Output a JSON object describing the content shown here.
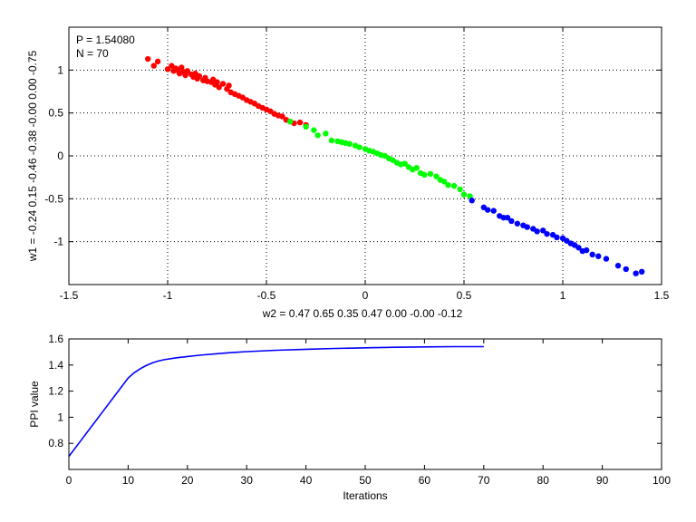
{
  "chart_data": [
    {
      "type": "scatter",
      "title": "",
      "xlabel": "w2 = 0.47  0.65  0.35  0.47  0.00  -0.00  -0.12",
      "ylabel": "w1 = -0.24  0.15  -0.46  -0.38  -0.00  0.00  -0.75",
      "xlim": [
        -1.5,
        1.5
      ],
      "ylim": [
        -1.5,
        1.5
      ],
      "xticks": [
        -1.5,
        -1,
        -0.5,
        0,
        0.5,
        1,
        1.5
      ],
      "yticks": [
        -1,
        -0.5,
        0,
        0.5,
        1
      ],
      "xtick_labels": [
        "-1.5",
        "-1",
        "-0.5",
        "0",
        "0.5",
        "1",
        "1.5"
      ],
      "ytick_labels": [
        "-1",
        "-0.5",
        "0",
        "0.5",
        "1"
      ],
      "grid": true,
      "annotations": [
        "P = 1.54080",
        "N = 70"
      ],
      "series": [
        {
          "color": "#ff0000",
          "x": [
            -1.1,
            -1.07,
            -1.05,
            -1.0,
            -0.98,
            -0.97,
            -0.96,
            -0.95,
            -0.94,
            -0.93,
            -0.92,
            -0.91,
            -0.9,
            -0.88,
            -0.87,
            -0.86,
            -0.85,
            -0.84,
            -0.82,
            -0.81,
            -0.8,
            -0.78,
            -0.77,
            -0.76,
            -0.75,
            -0.74,
            -0.72,
            -0.7,
            -0.69,
            -0.68,
            -0.66,
            -0.64,
            -0.62,
            -0.6,
            -0.58,
            -0.56,
            -0.54,
            -0.52,
            -0.5,
            -0.48,
            -0.46,
            -0.44,
            -0.42,
            -0.4,
            -0.38,
            -0.36,
            -0.33,
            -0.3
          ],
          "y": [
            1.13,
            1.05,
            1.1,
            1.01,
            1.05,
            0.99,
            1.02,
            1.0,
            0.96,
            1.03,
            0.98,
            0.94,
            0.99,
            0.95,
            0.92,
            0.96,
            0.9,
            0.93,
            0.88,
            0.91,
            0.87,
            0.86,
            0.89,
            0.83,
            0.86,
            0.8,
            0.84,
            0.78,
            0.82,
            0.74,
            0.72,
            0.7,
            0.68,
            0.65,
            0.63,
            0.61,
            0.58,
            0.56,
            0.54,
            0.52,
            0.49,
            0.47,
            0.46,
            0.42,
            0.4,
            0.38,
            0.39,
            0.36
          ]
        },
        {
          "color": "#00ff00",
          "x": [
            -0.38,
            -0.3,
            -0.26,
            -0.24,
            -0.2,
            -0.17,
            -0.14,
            -0.12,
            -0.1,
            -0.08,
            -0.05,
            -0.03,
            0.0,
            0.02,
            0.04,
            0.06,
            0.08,
            0.1,
            0.12,
            0.14,
            0.16,
            0.18,
            0.2,
            0.22,
            0.24,
            0.26,
            0.28,
            0.3,
            0.33,
            0.36,
            0.38,
            0.4,
            0.42,
            0.45,
            0.48,
            0.5,
            0.53
          ],
          "y": [
            0.4,
            0.34,
            0.3,
            0.24,
            0.26,
            0.18,
            0.17,
            0.16,
            0.15,
            0.14,
            0.12,
            0.1,
            0.08,
            0.06,
            0.05,
            0.03,
            0.01,
            0.0,
            -0.03,
            -0.05,
            -0.08,
            -0.1,
            -0.09,
            -0.13,
            -0.16,
            -0.14,
            -0.2,
            -0.22,
            -0.21,
            -0.24,
            -0.28,
            -0.3,
            -0.34,
            -0.35,
            -0.39,
            -0.45,
            -0.47
          ]
        },
        {
          "color": "#0000ff",
          "x": [
            0.54,
            0.6,
            0.62,
            0.65,
            0.68,
            0.7,
            0.72,
            0.74,
            0.77,
            0.8,
            0.82,
            0.85,
            0.87,
            0.9,
            0.92,
            0.95,
            0.97,
            1.0,
            1.02,
            1.04,
            1.06,
            1.08,
            1.1,
            1.12,
            1.15,
            1.18,
            1.22,
            1.28,
            1.32,
            1.37,
            1.4
          ],
          "y": [
            -0.52,
            -0.6,
            -0.63,
            -0.64,
            -0.7,
            -0.72,
            -0.72,
            -0.76,
            -0.79,
            -0.81,
            -0.83,
            -0.85,
            -0.88,
            -0.87,
            -0.91,
            -0.92,
            -0.95,
            -0.96,
            -0.99,
            -1.02,
            -1.04,
            -1.07,
            -1.11,
            -1.1,
            -1.15,
            -1.17,
            -1.2,
            -1.28,
            -1.32,
            -1.37,
            -1.35
          ]
        }
      ]
    },
    {
      "type": "line",
      "title": "",
      "xlabel": "Iterations",
      "ylabel": "PPI value",
      "xlim": [
        0,
        100
      ],
      "ylim": [
        0.6,
        1.6
      ],
      "xticks": [
        0,
        10,
        20,
        30,
        40,
        50,
        60,
        70,
        80,
        90,
        100
      ],
      "yticks": [
        0.8,
        1,
        1.2,
        1.4,
        1.6
      ],
      "xtick_labels": [
        "0",
        "10",
        "20",
        "30",
        "40",
        "50",
        "60",
        "70",
        "80",
        "90",
        "100"
      ],
      "ytick_labels": [
        "0.8",
        "1",
        "1.2",
        "1.4",
        "1.6"
      ],
      "grid": false,
      "series": [
        {
          "color": "#0000ff",
          "x": [
            0,
            2,
            4,
            6,
            8,
            10,
            11,
            12,
            13,
            14,
            15,
            16,
            18,
            20,
            22,
            25,
            28,
            30,
            35,
            40,
            45,
            50,
            55,
            60,
            65,
            70
          ],
          "y": [
            0.7,
            0.82,
            0.94,
            1.06,
            1.18,
            1.3,
            1.34,
            1.37,
            1.395,
            1.415,
            1.43,
            1.44,
            1.455,
            1.465,
            1.475,
            1.487,
            1.497,
            1.503,
            1.513,
            1.521,
            1.527,
            1.532,
            1.536,
            1.539,
            1.541,
            1.5408
          ]
        }
      ]
    }
  ]
}
